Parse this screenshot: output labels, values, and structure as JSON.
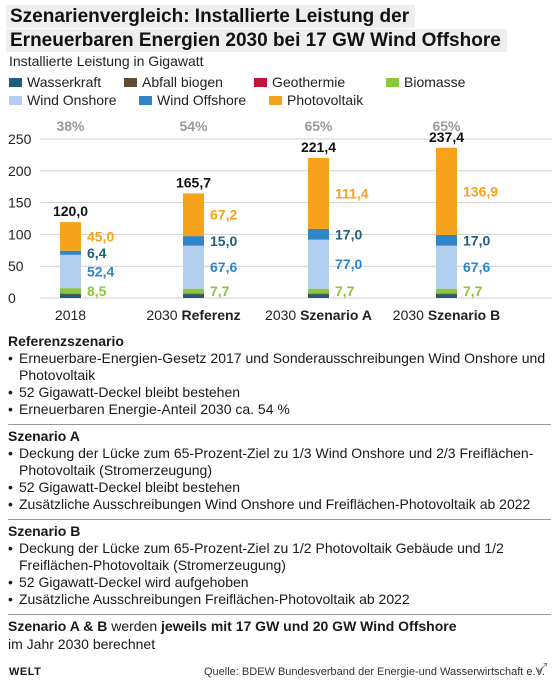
{
  "title_lines": [
    "Szenarienvergleich: Installierte Leistung der",
    "Erneuerbaren Energien 2030 bei 17 GW Wind Offshore"
  ],
  "subtitle": "Installierte Leistung in Gigawatt",
  "legend_items": [
    {
      "label": "Wasserkraft",
      "color": "#1f5f7a"
    },
    {
      "label": "Abfall biogen",
      "color": "#5e4b35"
    },
    {
      "label": "Geothermie",
      "color": "#c0143c"
    },
    {
      "label": "Biomasse",
      "color": "#8cc63f"
    },
    {
      "label": "Wind Onshore",
      "color": "#b3cff0"
    },
    {
      "label": "Wind Offshore",
      "color": "#2e86c8"
    },
    {
      "label": "Photovoltaik",
      "color": "#f7a21b"
    }
  ],
  "chart_data": {
    "type": "bar",
    "stacked": true,
    "categories": [
      {
        "prefix": "2018",
        "bold": ""
      },
      {
        "prefix": "2030",
        "bold": "Referenz"
      },
      {
        "prefix": "2030",
        "bold": "Szenario A"
      },
      {
        "prefix": "2030",
        "bold": "Szenario B"
      }
    ],
    "ylim": [
      0,
      250
    ],
    "yticks": [
      0,
      50,
      100,
      150,
      200,
      250
    ],
    "share_labels": [
      "38%",
      "54%",
      "65%",
      "65%"
    ],
    "totals": [
      "120,0",
      "165,7",
      "221,4",
      "237,4"
    ],
    "series": [
      {
        "name": "Wasserkraft",
        "color": "#1f5f7a",
        "values": [
          5.6,
          5.6,
          5.6,
          5.6
        ]
      },
      {
        "name": "Abfall biogen",
        "color": "#5e4b35",
        "values": [
          1.0,
          1.0,
          1.0,
          1.0
        ]
      },
      {
        "name": "Geothermie",
        "color": "#c0143c",
        "values": [
          0.4,
          0.4,
          0.4,
          0.4
        ]
      },
      {
        "name": "Biomasse",
        "color": "#8cc63f",
        "values": [
          8.5,
          7.7,
          7.7,
          7.7
        ]
      },
      {
        "name": "Wind Onshore",
        "color": "#b3cff0",
        "values": [
          52.4,
          67.6,
          77.0,
          67.6
        ]
      },
      {
        "name": "Wind Offshore",
        "color": "#2e86c8",
        "values": [
          6.4,
          15.0,
          17.0,
          17.0
        ]
      },
      {
        "name": "Photovoltaik",
        "color": "#f7a21b",
        "values": [
          45.0,
          67.2,
          111.4,
          136.9
        ]
      }
    ],
    "value_labels": [
      {
        "series": "Photovoltaik",
        "color": "#f7a21b",
        "texts": [
          "45,0",
          "67,2",
          "111,4",
          "136,9"
        ]
      },
      {
        "series": "Wind Offshore",
        "color": "#1f5f7a",
        "texts": [
          "6,4",
          "15,0",
          "17,0",
          "17,0"
        ]
      },
      {
        "series": "Wind Onshore",
        "color": "#2e86c8",
        "texts": [
          "52,4",
          "67,6",
          "77,0",
          "67,6"
        ]
      },
      {
        "series": "Biomasse",
        "color": "#8cc63f",
        "texts": [
          "8,5",
          "7,7",
          "7,7",
          "7,7"
        ]
      }
    ]
  },
  "sections": [
    {
      "title": "Referenzszenario",
      "bullets": [
        "Erneuerbare-Energien-Gesetz 2017 und Sonderausschreibungen Wind Onshore und Photovoltaik",
        "52 Gigawatt-Deckel bleibt bestehen",
        "Erneuerbaren Energie-Anteil 2030 ca. 54 %"
      ]
    },
    {
      "title": "Szenario A",
      "bullets": [
        "Deckung der Lücke zum 65-Prozent-Ziel zu 1/3 Wind Onshore und 2/3 Freiflächen-Photovoltaik (Stromerzeugung)",
        "52 Gigawatt-Deckel bleibt bestehen",
        "Zusätzliche Ausschreibungen Wind Onshore und Freiflächen-Photovoltaik ab 2022"
      ]
    },
    {
      "title": "Szenario B",
      "bullets": [
        "Deckung der Lücke zum 65-Prozent-Ziel zu 1/2 Photovoltaik Gebäude und 1/2 Freiflächen-Photovoltaik (Stromerzeugung)",
        "52 Gigawatt-Deckel wird aufgehoben",
        "Zusätzliche Ausschreibungen Freiflächen-Photovoltaik ab 2022"
      ]
    }
  ],
  "note": {
    "part1": "Szenario A & B",
    "part2": " werden ",
    "part3": "jeweils mit 17 GW und 20 GW Wind Offshore",
    "part4": "im Jahr 2030 berechnet"
  },
  "footer": {
    "logo": "WELT",
    "source": "Quelle: BDEW Bundesverband der Energie-und Wasserwirtschaft e.V."
  },
  "icons": {
    "expand": "expand-icon"
  }
}
